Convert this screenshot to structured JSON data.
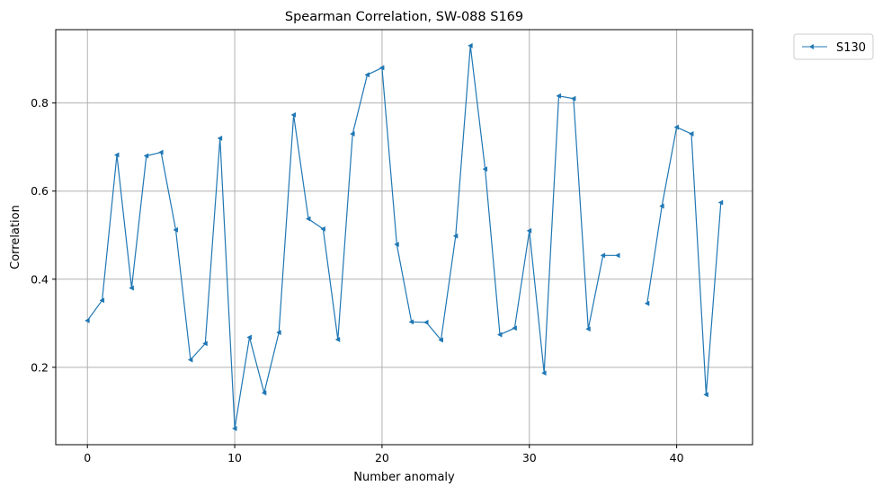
{
  "chart_data": {
    "type": "line",
    "title": "Spearman Correlation, SW-088  S169",
    "xlabel": "Number anomaly",
    "ylabel": "Correlation",
    "xlim": [
      -2.15,
      45.15
    ],
    "ylim": [
      0.0243,
      0.9665
    ],
    "xticks": [
      0,
      10,
      20,
      30,
      40
    ],
    "yticks": [
      0.2,
      0.4,
      0.6,
      0.8
    ],
    "ytick_labels": [
      "0.2",
      "0.4",
      "0.6",
      "0.8"
    ],
    "grid": true,
    "legend_position": "outside-top-right",
    "line_color": "#1f77b4",
    "marker": "triangle-left",
    "series": [
      {
        "name": "S130",
        "x": [
          0,
          1,
          2,
          3,
          4,
          5,
          6,
          7,
          8,
          9,
          10,
          11,
          12,
          13,
          14,
          15,
          16,
          17,
          18,
          19,
          20,
          21,
          22,
          23,
          24,
          25,
          26,
          27,
          28,
          29,
          30,
          31,
          32,
          33,
          34,
          35,
          36,
          37,
          38,
          39,
          40,
          41,
          42,
          43
        ],
        "values": [
          0.306,
          0.352,
          0.682,
          0.38,
          0.68,
          0.688,
          0.512,
          0.217,
          0.254,
          0.72,
          0.061,
          0.268,
          0.142,
          0.279,
          0.773,
          0.537,
          0.514,
          0.263,
          0.73,
          0.864,
          0.88,
          0.479,
          0.303,
          0.302,
          0.262,
          0.498,
          0.93,
          0.65,
          0.274,
          0.289,
          0.51,
          0.187,
          0.816,
          0.81,
          0.287,
          0.454,
          0.454,
          null,
          0.345,
          0.566,
          0.745,
          0.73,
          0.138,
          0.574
        ]
      }
    ]
  }
}
